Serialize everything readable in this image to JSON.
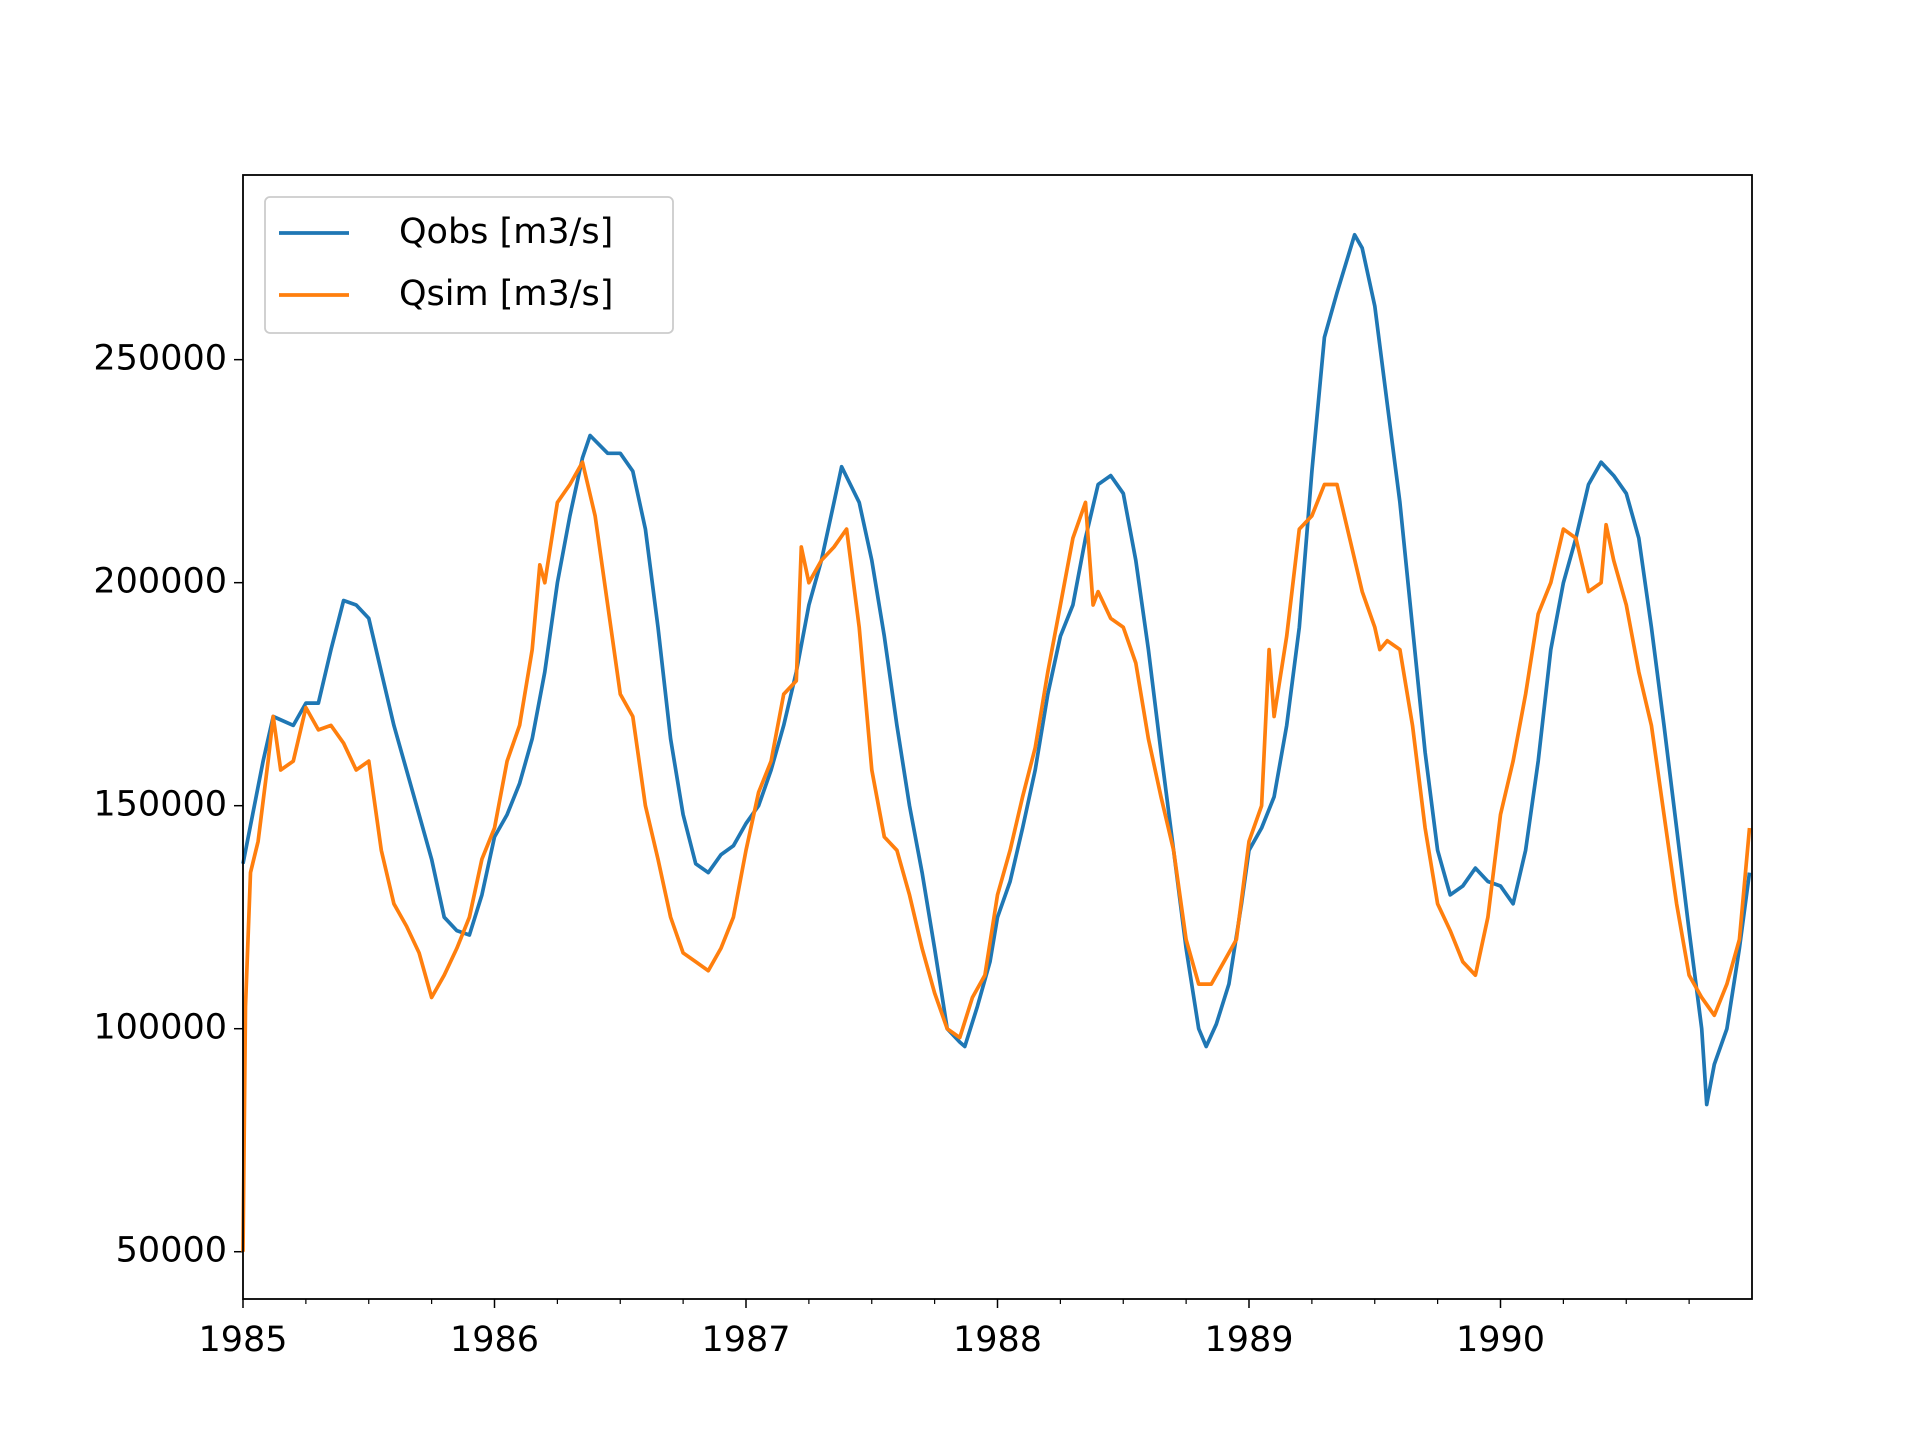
{
  "chart_data": {
    "type": "line",
    "xlim": [
      1985,
      1991
    ],
    "xticks": [
      1985,
      1986,
      1987,
      1988,
      1989,
      1990
    ],
    "xminorticks": [
      1985.25,
      1985.5,
      1985.75,
      1986.25,
      1986.5,
      1986.75,
      1987.25,
      1987.5,
      1987.75,
      1988.25,
      1988.5,
      1988.75,
      1989.25,
      1989.5,
      1989.75,
      1990.25,
      1990.5,
      1990.75
    ],
    "ylim": [
      39400,
      291400
    ],
    "yticks": [
      50000,
      100000,
      150000,
      200000,
      250000
    ],
    "legend": "upper left",
    "series": [
      {
        "name": "Qobs [m3/s]",
        "color": "#1f77b4",
        "x": [
          1985.0,
          1985.08,
          1985.12,
          1985.2,
          1985.25,
          1985.3,
          1985.35,
          1985.4,
          1985.45,
          1985.5,
          1985.55,
          1985.6,
          1985.65,
          1985.7,
          1985.75,
          1985.8,
          1985.85,
          1985.9,
          1985.95,
          1986.0,
          1986.05,
          1986.1,
          1986.15,
          1986.2,
          1986.25,
          1986.3,
          1986.35,
          1986.38,
          1986.45,
          1986.5,
          1986.55,
          1986.6,
          1986.65,
          1986.7,
          1986.75,
          1986.8,
          1986.85,
          1986.9,
          1986.95,
          1987.0,
          1987.05,
          1987.1,
          1987.15,
          1987.2,
          1987.25,
          1987.3,
          1987.35,
          1987.38,
          1987.45,
          1987.5,
          1987.55,
          1987.6,
          1987.65,
          1987.7,
          1987.75,
          1987.8,
          1987.85,
          1987.87,
          1987.92,
          1987.97,
          1988.0,
          1988.05,
          1988.1,
          1988.15,
          1988.2,
          1988.25,
          1988.3,
          1988.35,
          1988.4,
          1988.45,
          1988.5,
          1988.55,
          1988.6,
          1988.65,
          1988.7,
          1988.75,
          1988.8,
          1988.83,
          1988.87,
          1988.92,
          1988.97,
          1989.0,
          1989.05,
          1989.1,
          1989.15,
          1989.2,
          1989.25,
          1989.3,
          1989.35,
          1989.42,
          1989.45,
          1989.5,
          1989.55,
          1989.6,
          1989.65,
          1989.7,
          1989.75,
          1989.8,
          1989.85,
          1989.9,
          1989.95,
          1990.0,
          1990.05,
          1990.1,
          1990.15,
          1990.2,
          1990.25,
          1990.3,
          1990.35,
          1990.4,
          1990.45,
          1990.5,
          1990.55,
          1990.6,
          1990.65,
          1990.7,
          1990.75,
          1990.8,
          1990.82,
          1990.85,
          1990.9,
          1990.95,
          1990.99
        ],
        "values": [
          137000,
          160000,
          170000,
          168000,
          173000,
          173000,
          185000,
          196000,
          195000,
          192000,
          180000,
          168000,
          158000,
          148000,
          138000,
          125000,
          122000,
          121000,
          130000,
          143000,
          148000,
          155000,
          165000,
          180000,
          200000,
          215000,
          228000,
          233000,
          229000,
          229000,
          225000,
          212000,
          190000,
          165000,
          148000,
          137000,
          135000,
          139000,
          141000,
          146000,
          150000,
          158000,
          168000,
          180000,
          195000,
          205000,
          218000,
          226000,
          218000,
          205000,
          188000,
          168000,
          150000,
          135000,
          118000,
          100000,
          97000,
          96000,
          105000,
          115000,
          125000,
          133000,
          145000,
          158000,
          175000,
          188000,
          195000,
          210000,
          222000,
          224000,
          220000,
          205000,
          185000,
          162000,
          140000,
          118000,
          100000,
          96000,
          101000,
          110000,
          128000,
          140000,
          145000,
          152000,
          168000,
          190000,
          225000,
          255000,
          265000,
          278000,
          275000,
          262000,
          240000,
          218000,
          190000,
          162000,
          140000,
          130000,
          132000,
          136000,
          133000,
          132000,
          128000,
          140000,
          160000,
          185000,
          200000,
          210000,
          222000,
          227000,
          224000,
          220000,
          210000,
          190000,
          168000,
          145000,
          122000,
          100000,
          83000,
          92000,
          100000,
          118000,
          135000
        ]
      },
      {
        "name": "Qsim [m3/s]",
        "color": "#ff7f0e",
        "x": [
          1985.0,
          1985.01,
          1985.03,
          1985.06,
          1985.1,
          1985.12,
          1985.15,
          1985.2,
          1985.25,
          1985.3,
          1985.35,
          1985.4,
          1985.45,
          1985.5,
          1985.55,
          1985.6,
          1985.65,
          1985.7,
          1985.75,
          1985.8,
          1985.85,
          1985.9,
          1985.95,
          1986.0,
          1986.05,
          1986.1,
          1986.15,
          1986.18,
          1986.2,
          1986.25,
          1986.3,
          1986.35,
          1986.4,
          1986.45,
          1986.5,
          1986.55,
          1986.6,
          1986.65,
          1986.7,
          1986.75,
          1986.8,
          1986.85,
          1986.9,
          1986.95,
          1987.0,
          1987.05,
          1987.1,
          1987.15,
          1987.2,
          1987.22,
          1987.25,
          1987.3,
          1987.35,
          1987.4,
          1987.45,
          1987.5,
          1987.55,
          1987.6,
          1987.65,
          1987.7,
          1987.75,
          1987.8,
          1987.85,
          1987.9,
          1987.95,
          1988.0,
          1988.05,
          1988.1,
          1988.15,
          1988.2,
          1988.25,
          1988.3,
          1988.35,
          1988.38,
          1988.4,
          1988.45,
          1988.5,
          1988.55,
          1988.6,
          1988.65,
          1988.7,
          1988.75,
          1988.8,
          1988.85,
          1988.9,
          1988.95,
          1989.0,
          1989.05,
          1989.08,
          1989.1,
          1989.15,
          1989.2,
          1989.25,
          1989.3,
          1989.35,
          1989.4,
          1989.45,
          1989.5,
          1989.52,
          1989.55,
          1989.6,
          1989.65,
          1989.7,
          1989.75,
          1989.8,
          1989.85,
          1989.9,
          1989.95,
          1990.0,
          1990.05,
          1990.1,
          1990.15,
          1990.2,
          1990.25,
          1990.3,
          1990.35,
          1990.4,
          1990.42,
          1990.45,
          1990.5,
          1990.55,
          1990.6,
          1990.65,
          1990.7,
          1990.75,
          1990.8,
          1990.85,
          1990.9,
          1990.95,
          1990.99
        ],
        "values": [
          50000,
          105000,
          135000,
          142000,
          160000,
          170000,
          158000,
          160000,
          172000,
          167000,
          168000,
          164000,
          158000,
          160000,
          140000,
          128000,
          123000,
          117000,
          107000,
          112000,
          118000,
          125000,
          138000,
          145000,
          160000,
          168000,
          185000,
          204000,
          200000,
          218000,
          222000,
          227000,
          215000,
          195000,
          175000,
          170000,
          150000,
          138000,
          125000,
          117000,
          115000,
          113000,
          118000,
          125000,
          140000,
          153000,
          160000,
          175000,
          178000,
          208000,
          200000,
          205000,
          208000,
          212000,
          190000,
          158000,
          143000,
          140000,
          130000,
          118000,
          108000,
          100000,
          98000,
          107000,
          112000,
          130000,
          140000,
          152000,
          163000,
          180000,
          195000,
          210000,
          218000,
          195000,
          198000,
          192000,
          190000,
          182000,
          165000,
          152000,
          140000,
          120000,
          110000,
          110000,
          115000,
          120000,
          142000,
          150000,
          185000,
          170000,
          188000,
          212000,
          215000,
          222000,
          222000,
          210000,
          198000,
          190000,
          185000,
          187000,
          185000,
          168000,
          145000,
          128000,
          122000,
          115000,
          112000,
          125000,
          148000,
          160000,
          175000,
          193000,
          200000,
          212000,
          210000,
          198000,
          200000,
          213000,
          205000,
          195000,
          180000,
          168000,
          148000,
          128000,
          112000,
          107000,
          103000,
          110000,
          120000,
          145000
        ]
      }
    ]
  }
}
